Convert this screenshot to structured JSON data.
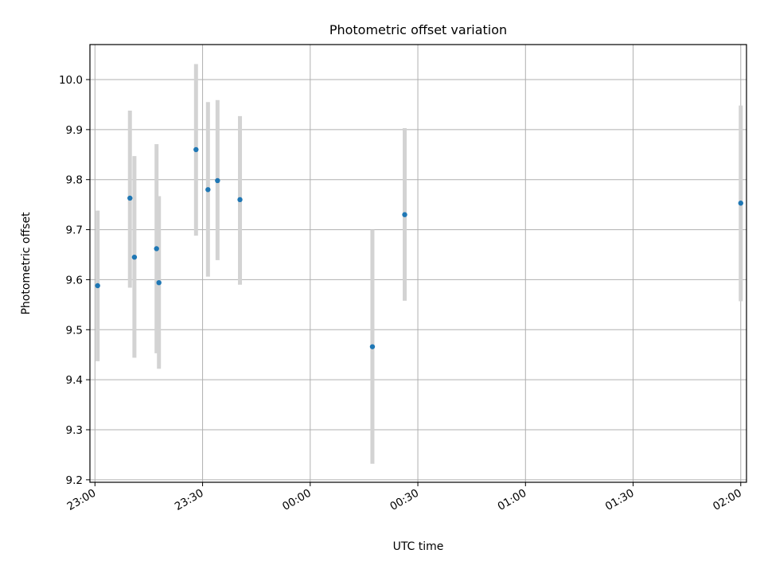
{
  "chart_data": {
    "type": "scatter",
    "title": "Photometric offset variation",
    "xlabel": "UTC time",
    "ylabel": "Photometric offset",
    "xlim": [
      "22:58:36",
      "02:01:36"
    ],
    "ylim": [
      9.195,
      10.07
    ],
    "xticks": [
      "23:00",
      "23:30",
      "00:00",
      "00:30",
      "01:00",
      "01:30",
      "02:00"
    ],
    "yticks": [
      "9.2",
      "9.3",
      "9.4",
      "9.5",
      "9.6",
      "9.7",
      "9.8",
      "9.9",
      "10.0"
    ],
    "grid": true,
    "marker_color": "#1f77b4",
    "errorbar_color": "#d3d3d3",
    "points": [
      {
        "x": "23:00:45",
        "y": 9.588,
        "ylo": 9.437,
        "yhi": 9.738
      },
      {
        "x": "23:09:45",
        "y": 9.763,
        "ylo": 9.584,
        "yhi": 9.938
      },
      {
        "x": "23:11:00",
        "y": 9.645,
        "ylo": 9.444,
        "yhi": 9.847
      },
      {
        "x": "23:17:10",
        "y": 9.662,
        "ylo": 9.453,
        "yhi": 9.871
      },
      {
        "x": "23:17:50",
        "y": 9.594,
        "ylo": 9.422,
        "yhi": 9.767
      },
      {
        "x": "23:28:10",
        "y": 9.86,
        "ylo": 9.688,
        "yhi": 10.031
      },
      {
        "x": "23:31:30",
        "y": 9.78,
        "ylo": 9.606,
        "yhi": 9.955
      },
      {
        "x": "23:34:10",
        "y": 9.798,
        "ylo": 9.639,
        "yhi": 9.959
      },
      {
        "x": "23:40:25",
        "y": 9.76,
        "ylo": 9.59,
        "yhi": 9.927
      },
      {
        "x": "00:17:20",
        "y": 9.466,
        "ylo": 9.232,
        "yhi": 9.7
      },
      {
        "x": "00:26:20",
        "y": 9.73,
        "ylo": 9.558,
        "yhi": 9.903
      },
      {
        "x": "02:00:00",
        "y": 9.753,
        "ylo": 9.557,
        "yhi": 9.948
      }
    ]
  }
}
